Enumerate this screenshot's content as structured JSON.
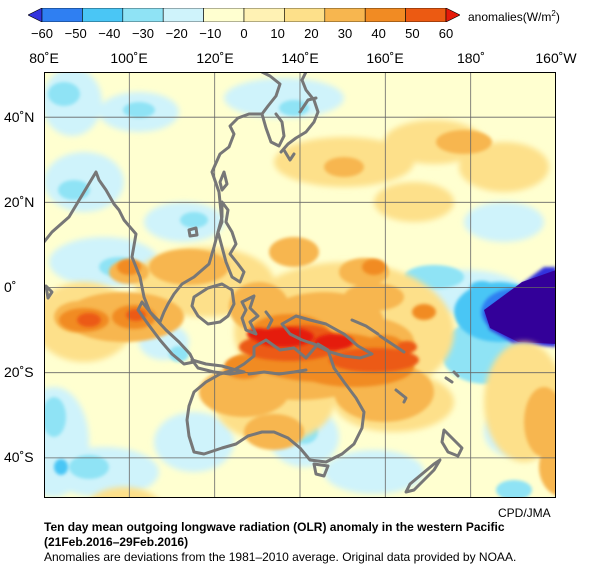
{
  "colorbar": {
    "ticks": [
      "−60",
      "−50",
      "−40",
      "−30",
      "−20",
      "−10",
      "0",
      "10",
      "20",
      "30",
      "40",
      "50",
      "60"
    ],
    "unit_prefix": "anomalies(W/m",
    "unit_exp": "2",
    "unit_suffix": ")",
    "colors": [
      "#3333dd",
      "#2f7ff2",
      "#4ac6f5",
      "#8fe3f5",
      "#cff3fb",
      "#ffffd0",
      "#fff2b4",
      "#fde08a",
      "#f7b64f",
      "#f18b23",
      "#ec5a12",
      "#e51a0a"
    ]
  },
  "lon_labels": [
    "80˚E",
    "100˚E",
    "120˚E",
    "140˚E",
    "160˚E",
    "180˚",
    "160˚W"
  ],
  "lat_labels": [
    "40˚N",
    "20˚N",
    "0˚",
    "20˚S",
    "40˚S"
  ],
  "credit": "CPD/JMA",
  "caption": {
    "title": "Ten day mean outgoing longwave radiation (OLR) anomaly in the western Pacific",
    "period": "(21Feb.2016–29Feb.2016)",
    "note": "Anomalies are deviations from the 1981–2010 average. Original data provided by NOAA."
  }
}
